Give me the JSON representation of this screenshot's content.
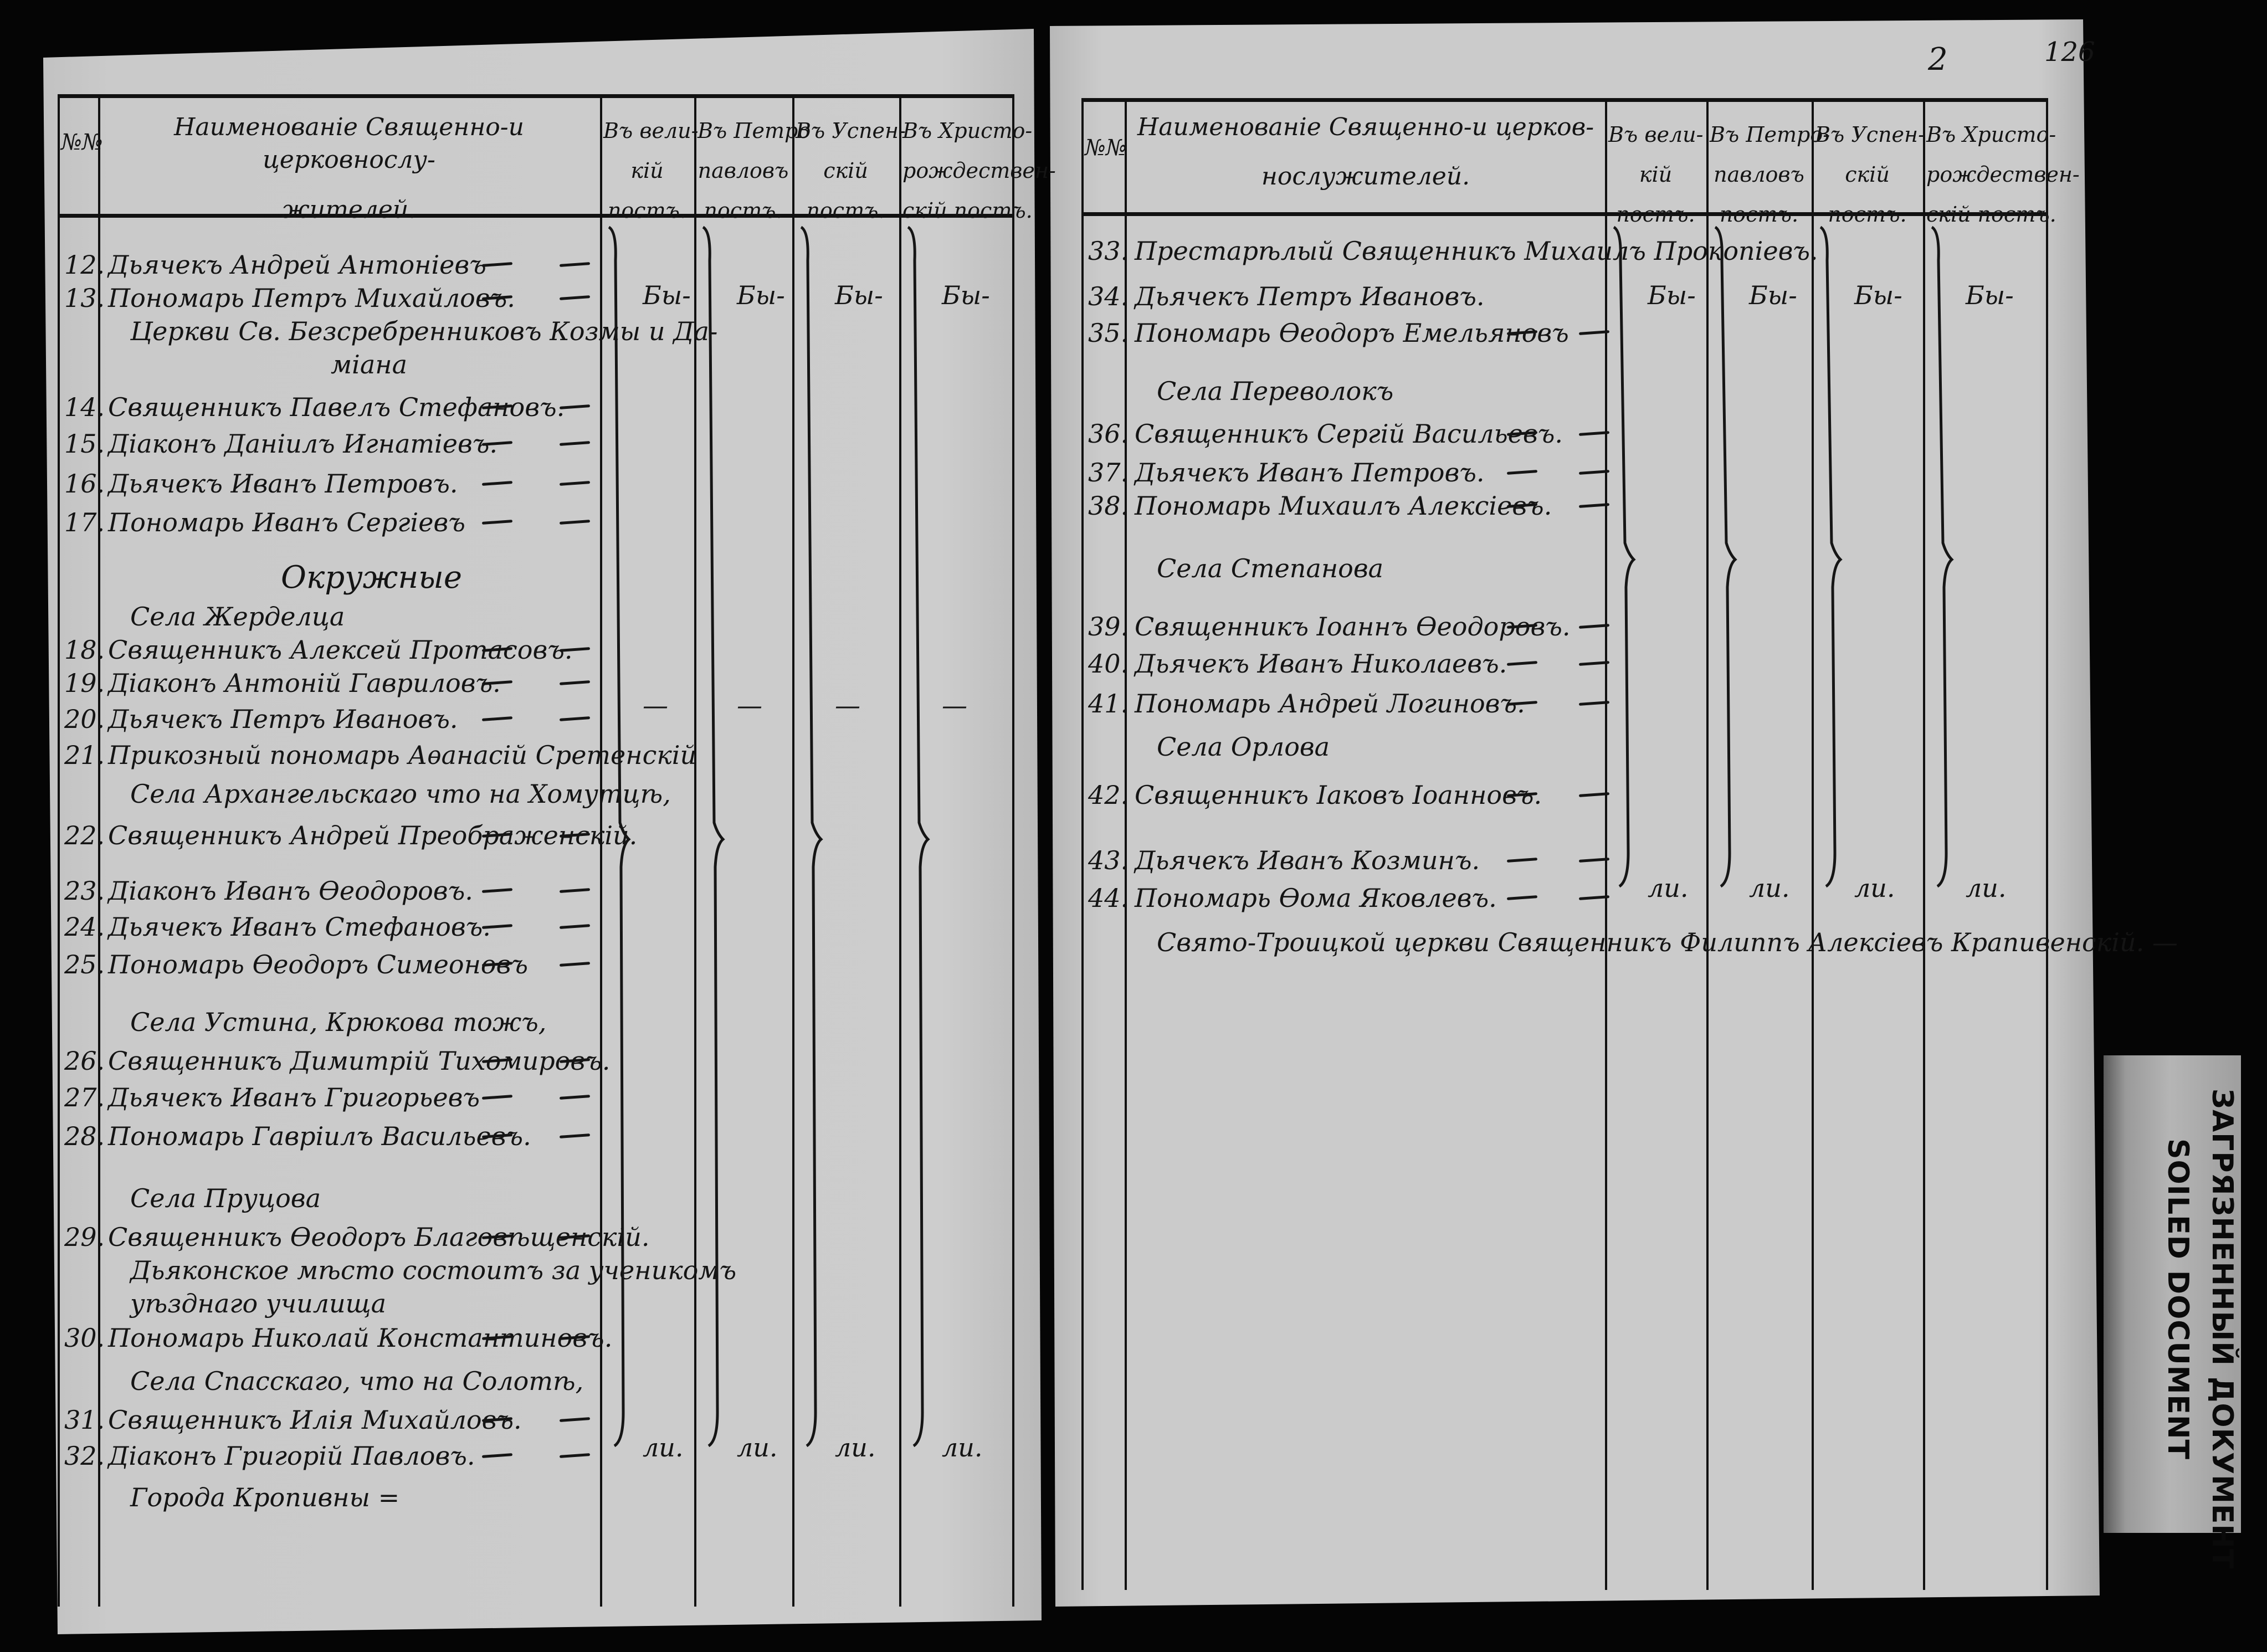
{
  "page_number": {
    "sheet": "2",
    "folio": "126"
  },
  "headers": {
    "left": {
      "number": "№№",
      "name": [
        "Наименованіе Священно-и церковнослу-",
        "жителей."
      ],
      "columns": [
        [
          "Въ вели-",
          "кій",
          "постъ."
        ],
        [
          "Въ Петро",
          "павловъ",
          "постъ."
        ],
        [
          "Въ Успен-",
          "скій",
          "постъ."
        ],
        [
          "Въ Христо-",
          "рождествен-",
          "скій постъ."
        ]
      ]
    },
    "right": {
      "number": "№№",
      "name": [
        "Наименованіе Священно-и церков-",
        "нослужителей."
      ],
      "columns": [
        [
          "Въ вели-",
          "кій",
          "постъ."
        ],
        [
          "Въ Петро-",
          "павловъ",
          "постъ."
        ],
        [
          "Въ Успен-",
          "скій",
          "постъ."
        ],
        [
          "Въ Христо-",
          "рождествен-",
          "скій постъ."
        ]
      ]
    }
  },
  "left_rows": [
    {
      "no": "12.",
      "text": "Дьячекъ Андрей Антоніевъ"
    },
    {
      "no": "13.",
      "text": "Пономарь Петръ Михайловъ."
    },
    {
      "no": "",
      "text": "Церкви Св. Безсребренниковъ Козмы и Да-"
    },
    {
      "no": "",
      "text": "міана"
    },
    {
      "no": "14.",
      "text": "Священникъ Павелъ Стефановъ."
    },
    {
      "no": "15.",
      "text": "Діаконъ Даніилъ Игнатіевъ."
    },
    {
      "no": "16.",
      "text": "Дьячекъ Иванъ Петровъ."
    },
    {
      "no": "17.",
      "text": "Пономарь Иванъ Сергіевъ"
    },
    {
      "no": "",
      "text": "Окружные"
    },
    {
      "no": "",
      "text": "Села Жерделца"
    },
    {
      "no": "18.",
      "text": "Священникъ Алексей Протасовъ."
    },
    {
      "no": "19.",
      "text": "Діаконъ Антоній Гавриловъ."
    },
    {
      "no": "20.",
      "text": "Дьячекъ Петръ Ивановъ."
    },
    {
      "no": "21.",
      "text": "Прикозный пономарь Аѳанасій Сретенскій"
    },
    {
      "no": "",
      "text": "Села Архангельскаго что на Хомутцѣ,"
    },
    {
      "no": "22.",
      "text": "Священникъ Андрей Преображенскій."
    },
    {
      "no": "23.",
      "text": "Діаконъ Иванъ Ѳеодоровъ."
    },
    {
      "no": "24.",
      "text": "Дьячекъ Иванъ Стефановъ."
    },
    {
      "no": "25.",
      "text": "Пономарь Ѳеодоръ Симеоновъ"
    },
    {
      "no": "",
      "text": "Села Устина, Крюкова тожъ,"
    },
    {
      "no": "26.",
      "text": "Священникъ Димитрій Тихомировъ."
    },
    {
      "no": "27.",
      "text": "Дьячекъ Иванъ Григорьевъ"
    },
    {
      "no": "28.",
      "text": "Пономарь Гавріилъ Васильевъ."
    },
    {
      "no": "",
      "text": "Села Пруцова"
    },
    {
      "no": "29.",
      "text": "Священникъ Ѳеодоръ Благовѣщенскій."
    },
    {
      "no": "",
      "text": "Дьяконское мѣсто состоитъ за ученикомъ"
    },
    {
      "no": "",
      "text": "уѣзднаго училища"
    },
    {
      "no": "30.",
      "text": "Пономарь Николай Константиновъ."
    },
    {
      "no": "",
      "text": "Села Спасскаго, что на Солотѣ,"
    },
    {
      "no": "31.",
      "text": "Священникъ Илія Михайловъ."
    },
    {
      "no": "32.",
      "text": "Діаконъ Григорій Павловъ."
    },
    {
      "no": "",
      "text": "Города Кропивны ="
    }
  ],
  "right_rows": [
    {
      "no": "33.",
      "text": "Престарѣлый Священникъ Михаилъ Прокопіевъ."
    },
    {
      "no": "34.",
      "text": "Дьячекъ Петръ Ивановъ."
    },
    {
      "no": "35.",
      "text": "Пономарь Ѳеодоръ Емельяновъ"
    },
    {
      "no": "",
      "text": "Села Переволокъ"
    },
    {
      "no": "36.",
      "text": "Священникъ Сергій Васильевъ."
    },
    {
      "no": "37.",
      "text": "Дьячекъ Иванъ Петровъ."
    },
    {
      "no": "38.",
      "text": "Пономарь Михаилъ Алексіевъ."
    },
    {
      "no": "",
      "text": "Села Степанова"
    },
    {
      "no": "39.",
      "text": "Священникъ Іоаннъ Ѳеодоровъ."
    },
    {
      "no": "40.",
      "text": "Дьячекъ Иванъ Николаевъ."
    },
    {
      "no": "41.",
      "text": "Пономарь Андрей Логиновъ."
    },
    {
      "no": "",
      "text": "Села Орлова"
    },
    {
      "no": "42.",
      "text": "Священникъ Іаковъ Іоанновъ."
    },
    {
      "no": "43.",
      "text": "Дьячекъ Иванъ Козминъ."
    },
    {
      "no": "44.",
      "text": "Пономарь Ѳома Яковлевъ."
    },
    {
      "no": "",
      "text": "Свято-Троицкой церкви Священникъ Филиппъ Алексіевъ Крапивенскій. —"
    }
  ],
  "column_marks": {
    "start": "Бы-",
    "end": "ли.",
    "middle": "—"
  },
  "stamp": {
    "line1": "ЗАГРЯЗНЕННЫЙ ДОКУМЕНТ",
    "line2": "SOILED DOCUMENT"
  }
}
